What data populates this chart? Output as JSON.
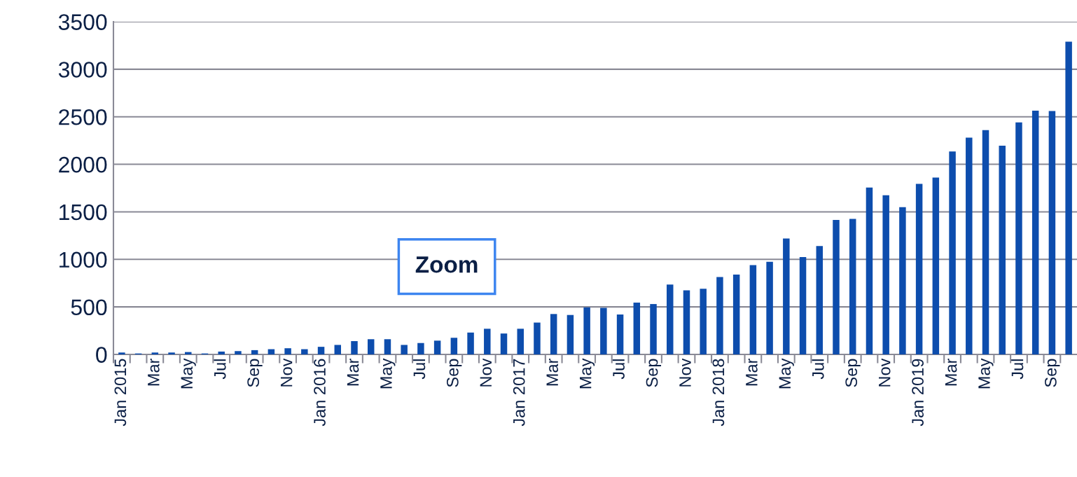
{
  "chart_data": {
    "type": "bar",
    "categories": [
      "Jan 2015",
      null,
      "Mar",
      null,
      "May",
      null,
      "Jul",
      null,
      "Sep",
      null,
      "Nov",
      null,
      "Jan 2016",
      null,
      "Mar",
      null,
      "May",
      null,
      "Jul",
      null,
      "Sep",
      null,
      "Nov",
      null,
      "Jan 2017",
      null,
      "Mar",
      null,
      "May",
      null,
      "Jul",
      null,
      "Sep",
      null,
      "Nov",
      null,
      "Jan 2018",
      null,
      "Mar",
      null,
      "May",
      null,
      "Jul",
      null,
      "Sep",
      null,
      "Nov",
      null,
      "Jan 2019",
      null,
      "Mar",
      null,
      "May",
      null,
      "Jul",
      null,
      "Sep",
      null
    ],
    "values": [
      20,
      10,
      20,
      20,
      25,
      10,
      30,
      35,
      45,
      55,
      65,
      55,
      80,
      100,
      140,
      160,
      160,
      100,
      120,
      145,
      175,
      230,
      270,
      220,
      270,
      335,
      425,
      415,
      495,
      490,
      420,
      545,
      530,
      735,
      675,
      690,
      815,
      840,
      940,
      975,
      1220,
      1025,
      1140,
      1415,
      1425,
      1755,
      1675,
      1550,
      1795,
      1860,
      2135,
      2280,
      2360,
      2195,
      2440,
      2565,
      2560,
      3290
    ],
    "color": "#0d4dad",
    "ylim": [
      0,
      3500
    ],
    "yticks": [
      0,
      500,
      1000,
      1500,
      2000,
      2500,
      3000,
      3500
    ],
    "grid": "y",
    "annotations": [
      "Zoom"
    ]
  }
}
